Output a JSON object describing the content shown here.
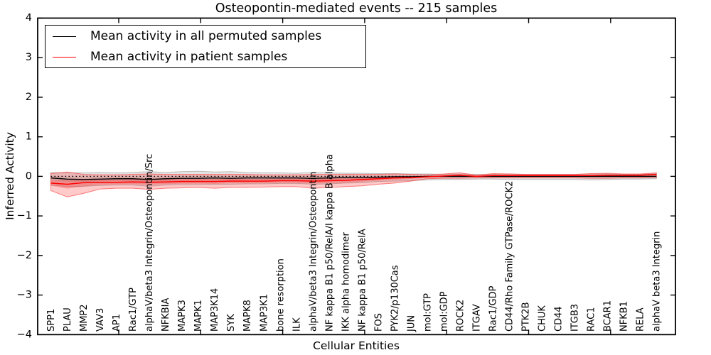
{
  "title": "Osteopontin-mediated events -- 215 samples",
  "chart_data": {
    "type": "line",
    "title": "Osteopontin-mediated events -- 215 samples",
    "xlabel": "Cellular Entities",
    "ylabel": "Inferred Activity",
    "ylim": [
      -4,
      4
    ],
    "ytick_labels": [
      "−4",
      "−3",
      "−2",
      "−1",
      "0",
      "1",
      "2",
      "3",
      "4"
    ],
    "yticks": [
      -4,
      -3,
      -2,
      -1,
      0,
      1,
      2,
      3,
      4
    ],
    "grid": false,
    "legend_position": "upper left",
    "reference_line": {
      "y": 0,
      "style": "dotted",
      "color": "#000000"
    },
    "categories": [
      "SPP1",
      "PLAU",
      "MMP2",
      "VAV3",
      "AP1",
      "Rac1/GTP",
      "alphaV/beta3 Integrin/Osteopontin/Src",
      "NFKBIA",
      "MAPK3",
      "MAPK1",
      "MAP3K14",
      "SYK",
      "MAPK8",
      "MAP3K1",
      "bone resorption",
      "ILK",
      "alphaV/beta3 Integrin/Osteopontin",
      "NF kappa B1 p50/RelA/I kappa B alpha",
      "IKK alpha homodimer",
      "NF kappa B1 p50/RelA",
      "FOS",
      "PYK2/p130Cas",
      "JUN",
      "mol:GTP",
      "mol:GDP",
      "ROCK2",
      "ITGAV",
      "Rac1/GDP",
      "CD44/Rho Family GTPase/ROCK2",
      "PTK2B",
      "CHUK",
      "CD44",
      "ITGB3",
      "RAC1",
      "BCAR1",
      "NFKB1",
      "RELA",
      "alphaV beta3 Integrin"
    ],
    "series": [
      {
        "name": "Mean activity in all permuted samples",
        "color": "#000000",
        "band_color": "#909090",
        "values": [
          -0.04,
          -0.07,
          -0.08,
          -0.07,
          -0.06,
          -0.06,
          -0.08,
          -0.06,
          -0.05,
          -0.05,
          -0.04,
          -0.05,
          -0.04,
          -0.04,
          -0.04,
          -0.04,
          -0.05,
          -0.04,
          -0.03,
          -0.03,
          -0.02,
          -0.01,
          -0.01,
          0,
          0,
          0,
          0,
          0,
          0,
          0,
          0,
          0,
          0,
          0,
          0,
          0,
          0,
          0
        ],
        "band_upper": [
          0.1,
          0.09,
          0.09,
          0.1,
          0.09,
          0.1,
          0.12,
          0.1,
          0.12,
          0.13,
          0.11,
          0.12,
          0.1,
          0.09,
          0.09,
          0.08,
          0.1,
          0.09,
          0.08,
          0.08,
          0.07,
          0.07,
          0.06,
          0.06,
          0.05,
          0.06,
          0.05,
          0.05,
          0.06,
          0.05,
          0.05,
          0.05,
          0.05,
          0.06,
          0.06,
          0.05,
          0.05,
          0.07
        ],
        "band_lower": [
          -0.22,
          -0.26,
          -0.25,
          -0.23,
          -0.22,
          -0.22,
          -0.25,
          -0.22,
          -0.21,
          -0.21,
          -0.2,
          -0.2,
          -0.19,
          -0.19,
          -0.18,
          -0.18,
          -0.2,
          -0.19,
          -0.17,
          -0.16,
          -0.13,
          -0.12,
          -0.11,
          -0.09,
          -0.08,
          -0.08,
          -0.07,
          -0.07,
          -0.08,
          -0.08,
          -0.08,
          -0.08,
          -0.08,
          -0.09,
          -0.08,
          -0.07,
          -0.07,
          -0.06
        ]
      },
      {
        "name": "Mean activity in patient samples",
        "color": "#ff0000",
        "band_color": "#ff2020",
        "values": [
          -0.17,
          -0.2,
          -0.16,
          -0.15,
          -0.15,
          -0.14,
          -0.15,
          -0.14,
          -0.13,
          -0.13,
          -0.13,
          -0.12,
          -0.12,
          -0.12,
          -0.11,
          -0.11,
          -0.12,
          -0.11,
          -0.1,
          -0.08,
          -0.06,
          -0.04,
          -0.03,
          -0.01,
          0.01,
          0.03,
          0.0,
          0.02,
          0.02,
          0.02,
          0.02,
          0.02,
          0.02,
          0.02,
          0.03,
          0.03,
          0.03,
          0.05
        ],
        "band_upper": [
          0.07,
          0.11,
          0.05,
          0.04,
          0.04,
          0.05,
          0.06,
          0.05,
          0.05,
          0.05,
          0.05,
          0.05,
          0.05,
          0.04,
          0.04,
          0.04,
          0.05,
          0.05,
          0.05,
          0.05,
          0.05,
          0.06,
          0.05,
          0.04,
          0.06,
          0.09,
          0.03,
          0.07,
          0.06,
          0.05,
          0.05,
          0.05,
          0.05,
          0.07,
          0.08,
          0.06,
          0.06,
          0.09
        ],
        "band_lower": [
          -0.36,
          -0.52,
          -0.43,
          -0.32,
          -0.3,
          -0.3,
          -0.33,
          -0.3,
          -0.29,
          -0.28,
          -0.3,
          -0.28,
          -0.28,
          -0.27,
          -0.26,
          -0.26,
          -0.3,
          -0.28,
          -0.26,
          -0.24,
          -0.2,
          -0.17,
          -0.12,
          -0.06,
          -0.05,
          -0.05,
          -0.04,
          -0.04,
          -0.04,
          -0.04,
          -0.04,
          -0.04,
          -0.04,
          -0.05,
          -0.05,
          -0.04,
          -0.04,
          -0.03
        ]
      }
    ]
  }
}
